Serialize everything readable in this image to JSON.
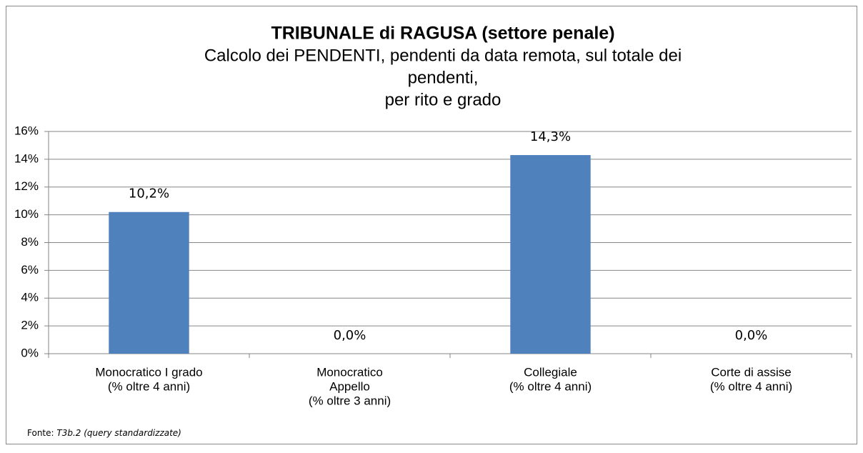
{
  "chart_data": {
    "type": "bar",
    "title": "TRIBUNALE di RAGUSA (settore penale)",
    "subtitle": [
      "Calcolo dei PENDENTI, pendenti da data remota, sul totale dei",
      "pendenti,",
      "per rito e grado"
    ],
    "categories": [
      [
        "Monocratico I grado",
        "(% oltre 4 anni)"
      ],
      [
        "Monocratico",
        "Appello",
        "(% oltre 3 anni)"
      ],
      [
        "Collegiale",
        "(% oltre 4 anni)"
      ],
      [
        "Corte di assise",
        "(% oltre 4 anni)"
      ]
    ],
    "values": [
      10.2,
      0,
      14.3,
      0
    ],
    "value_labels": [
      "10,2%",
      "0,0%",
      "14,3%",
      "0,0%"
    ],
    "color": "#4f81bd",
    "ylim": [
      0,
      16
    ],
    "yticks": [
      {
        "value": 0,
        "label": "0%"
      },
      {
        "value": 2,
        "label": "2%"
      },
      {
        "value": 4,
        "label": "4%"
      },
      {
        "value": 6,
        "label": "6%"
      },
      {
        "value": 8,
        "label": "8%"
      },
      {
        "value": 10,
        "label": "10%"
      },
      {
        "value": 12,
        "label": "12%"
      },
      {
        "value": 14,
        "label": "14%"
      },
      {
        "value": 16,
        "label": "16%"
      }
    ],
    "grid": true,
    "source": {
      "prefix": "Fonte:",
      "text": "T3b.2 (query standardizzate)"
    }
  }
}
